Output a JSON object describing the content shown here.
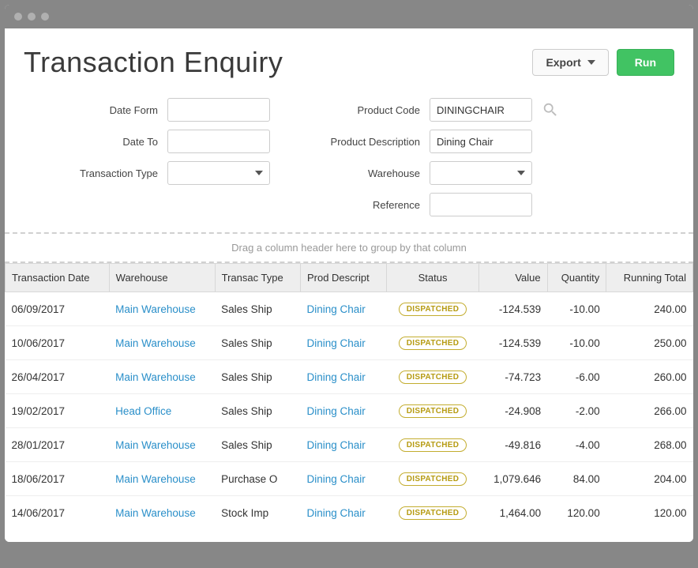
{
  "title": "Transaction Enquiry",
  "buttons": {
    "export": "Export",
    "run": "Run"
  },
  "form": {
    "labels": {
      "date_from": "Date Form",
      "date_to": "Date To",
      "transaction_type": "Transaction Type",
      "product_code": "Product Code",
      "product_description": "Product Description",
      "warehouse": "Warehouse",
      "reference": "Reference"
    },
    "values": {
      "date_from": "",
      "date_to": "",
      "transaction_type": "",
      "product_code": "DININGCHAIR",
      "product_description": "Dining Chair",
      "warehouse": "",
      "reference": ""
    }
  },
  "group_hint": "Drag a column header here to group by that column",
  "columns": {
    "transaction_date": "Transaction Date",
    "warehouse": "Warehouse",
    "transac_type": "Transac Type",
    "prod_descript": "Prod Descript",
    "status": "Status",
    "value": "Value",
    "quantity": "Quantity",
    "running_total": "Running Total"
  },
  "rows": [
    {
      "date": "06/09/2017",
      "warehouse": "Main Warehouse",
      "type": "Sales Ship",
      "product": "Dining Chair",
      "status": "DISPATCHED",
      "value": "-124.539",
      "quantity": "-10.00",
      "running": "240.00"
    },
    {
      "date": "10/06/2017",
      "warehouse": "Main Warehouse",
      "type": "Sales Ship",
      "product": "Dining Chair",
      "status": "DISPATCHED",
      "value": "-124.539",
      "quantity": "-10.00",
      "running": "250.00"
    },
    {
      "date": "26/04/2017",
      "warehouse": "Main Warehouse",
      "type": "Sales Ship",
      "product": "Dining Chair",
      "status": "DISPATCHED",
      "value": "-74.723",
      "quantity": "-6.00",
      "running": "260.00"
    },
    {
      "date": "19/02/2017",
      "warehouse": "Head Office",
      "type": "Sales Ship",
      "product": "Dining Chair",
      "status": "DISPATCHED",
      "value": "-24.908",
      "quantity": "-2.00",
      "running": "266.00"
    },
    {
      "date": "28/01/2017",
      "warehouse": "Main Warehouse",
      "type": "Sales Ship",
      "product": "Dining Chair",
      "status": "DISPATCHED",
      "value": "-49.816",
      "quantity": "-4.00",
      "running": "268.00"
    },
    {
      "date": "18/06/2017",
      "warehouse": "Main Warehouse",
      "type": "Purchase O",
      "product": "Dining Chair",
      "status": "DISPATCHED",
      "value": "1,079.646",
      "quantity": "84.00",
      "running": "204.00"
    },
    {
      "date": "14/06/2017",
      "warehouse": "Main Warehouse",
      "type": "Stock Imp",
      "product": "Dining Chair",
      "status": "DISPATCHED",
      "value": "1,464.00",
      "quantity": "120.00",
      "running": "120.00"
    }
  ],
  "colors": {
    "link": "#2a8fc9",
    "badge_border": "#c3ad2f",
    "badge_text": "#b69b12",
    "run_bg": "#41c363"
  }
}
